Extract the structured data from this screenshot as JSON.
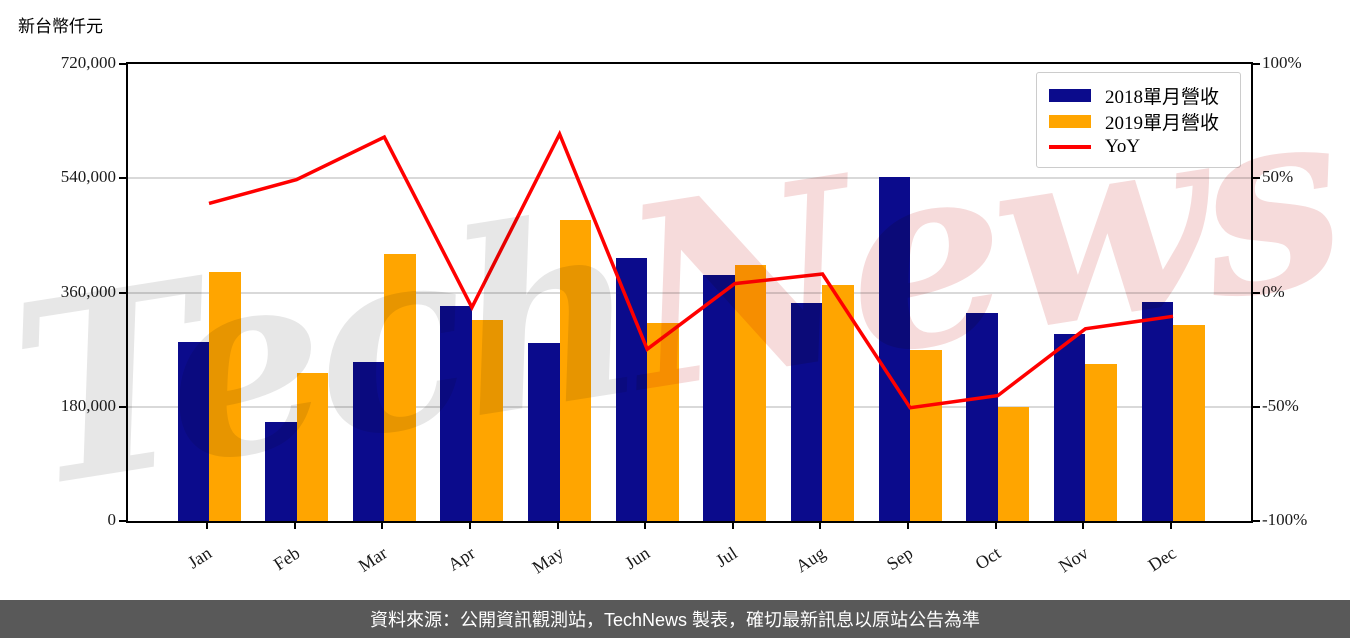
{
  "chart_data": {
    "type": "bar+line",
    "title": "",
    "ylabel_left_unit": "新台幣仟元",
    "categories": [
      "Jan",
      "Feb",
      "Mar",
      "Apr",
      "May",
      "Jun",
      "Jul",
      "Aug",
      "Sep",
      "Oct",
      "Nov",
      "Dec"
    ],
    "series": [
      {
        "name": "2018單月營收",
        "type": "bar",
        "color": "#0b0b8c",
        "axis": "left",
        "values": [
          282000,
          156000,
          250000,
          339000,
          280000,
          415000,
          388000,
          344000,
          542000,
          328000,
          295000,
          345000
        ]
      },
      {
        "name": "2019單月營收",
        "type": "bar",
        "color": "#ffa500",
        "axis": "left",
        "values": [
          392000,
          233000,
          420000,
          317000,
          474000,
          312000,
          403000,
          372000,
          269000,
          180000,
          248000,
          309000
        ]
      },
      {
        "name": "YoY",
        "type": "line",
        "color": "#ff0000",
        "axis": "right",
        "values_pct": [
          39.0,
          49.4,
          68.0,
          -6.5,
          69.3,
          -24.8,
          3.9,
          8.1,
          -50.4,
          -45.1,
          -15.9,
          -10.4
        ]
      }
    ],
    "left_axis": {
      "min": 0,
      "max": 720000,
      "tick_labels": [
        "720,000",
        "540,000",
        "360,000",
        "180,000",
        "0"
      ]
    },
    "right_axis": {
      "min": -100,
      "max": 100,
      "tick_labels": [
        "100%",
        "50%",
        "0%",
        "-50%",
        "-100%"
      ]
    },
    "grid": true,
    "legend_position": "top-right"
  },
  "watermark": {
    "part1": "Tech",
    "part2": "News"
  },
  "footer": {
    "text": "資料來源：公開資訊觀測站，TechNews 製表，確切最新訊息以原站公告為準"
  }
}
